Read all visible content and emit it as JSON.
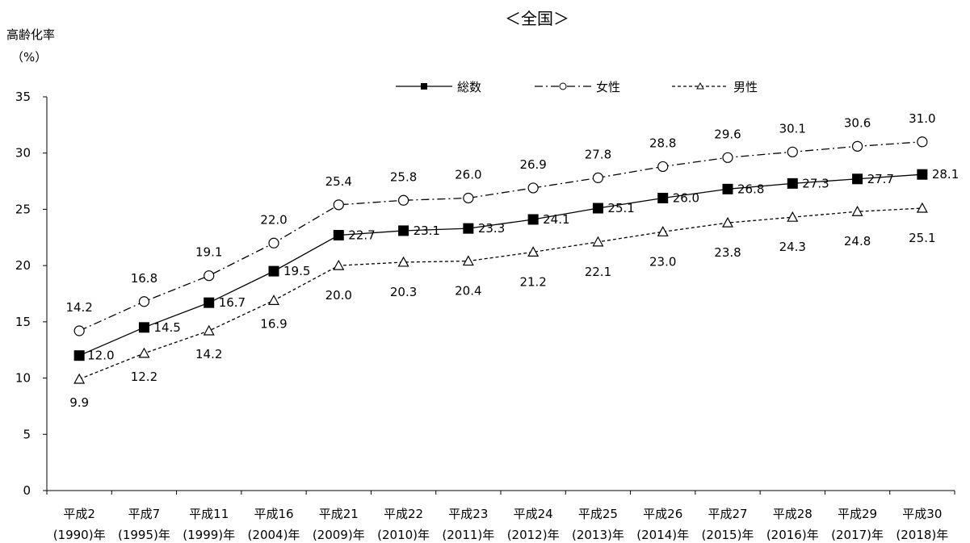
{
  "chart_data": {
    "type": "line",
    "title": "＜全国＞",
    "ylabel": "高齢化率",
    "yunit": "（%）",
    "ylim": [
      0,
      35
    ],
    "yticks": [
      0,
      5,
      10,
      15,
      20,
      25,
      30,
      35
    ],
    "grid": false,
    "legend_position": "top-right",
    "categories": [
      {
        "era": "平成2",
        "year": "(1990)年"
      },
      {
        "era": "平成7",
        "year": "(1995)年"
      },
      {
        "era": "平成11",
        "year": "(1999)年"
      },
      {
        "era": "平成16",
        "year": "(2004)年"
      },
      {
        "era": "平成21",
        "year": "(2009)年"
      },
      {
        "era": "平成22",
        "year": "(2010)年"
      },
      {
        "era": "平成23",
        "year": "(2011)年"
      },
      {
        "era": "平成24",
        "year": "(2012)年"
      },
      {
        "era": "平成25",
        "year": "(2013)年"
      },
      {
        "era": "平成26",
        "year": "(2014)年"
      },
      {
        "era": "平成27",
        "year": "(2015)年"
      },
      {
        "era": "平成28",
        "year": "(2016)年"
      },
      {
        "era": "平成29",
        "year": "(2017)年"
      },
      {
        "era": "平成30",
        "year": "(2018)年"
      }
    ],
    "series": [
      {
        "name": "総数",
        "marker": "filled-square",
        "line": "solid",
        "values": [
          12.0,
          14.5,
          16.7,
          19.5,
          22.7,
          23.1,
          23.3,
          24.1,
          25.1,
          26.0,
          26.8,
          27.3,
          27.7,
          28.1
        ]
      },
      {
        "name": "女性",
        "marker": "open-circle",
        "line": "dash-dot",
        "values": [
          14.2,
          16.8,
          19.1,
          22.0,
          25.4,
          25.8,
          26.0,
          26.9,
          27.8,
          28.8,
          29.6,
          30.1,
          30.6,
          31.0
        ]
      },
      {
        "name": "男性",
        "marker": "open-triangle",
        "line": "dotted",
        "values": [
          9.9,
          12.2,
          14.2,
          16.9,
          20.0,
          20.3,
          20.4,
          21.2,
          22.1,
          23.0,
          23.8,
          24.3,
          24.8,
          25.1
        ]
      }
    ]
  }
}
